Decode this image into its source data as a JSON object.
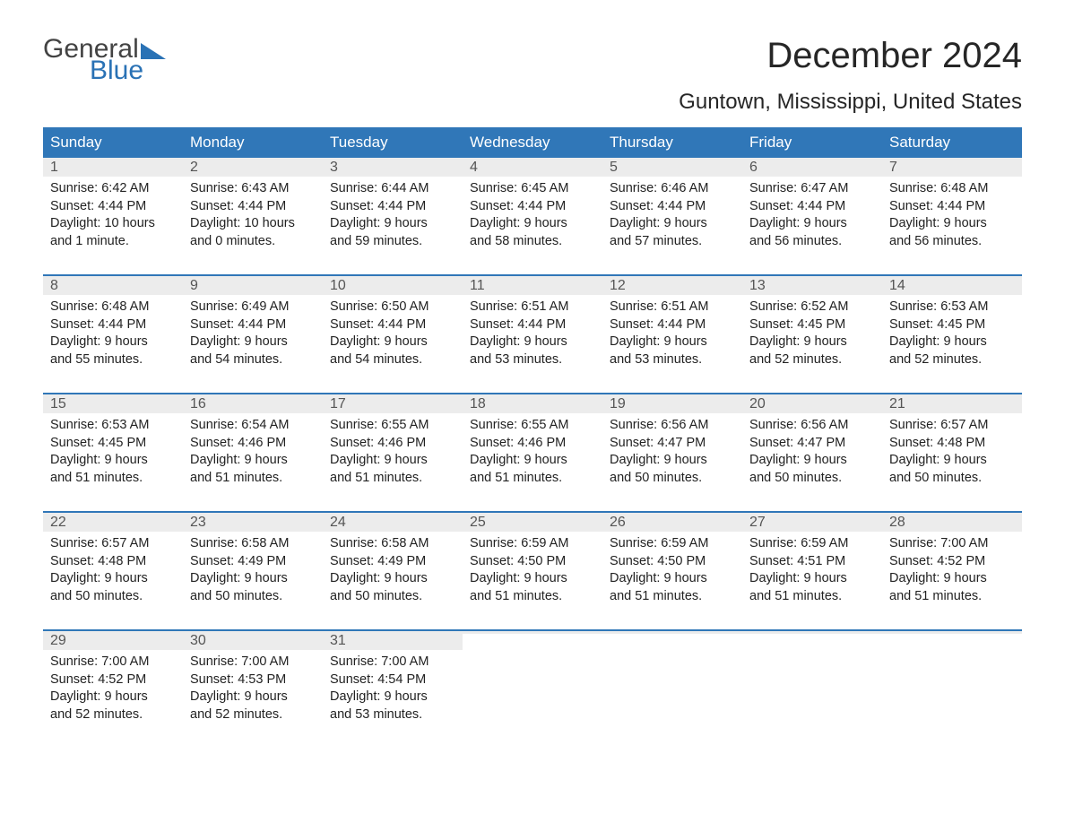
{
  "logo": {
    "line1": "General",
    "line2": "Blue"
  },
  "title": "December 2024",
  "location": "Guntown, Mississippi, United States",
  "colors": {
    "header_blue": "#3077b8",
    "band_gray": "#ececec",
    "logo_gray": "#434343",
    "logo_blue": "#2a72b5",
    "text": "#222222",
    "background": "#ffffff"
  },
  "fonts": {
    "title_pt": 40,
    "location_pt": 24,
    "weekday_pt": 17,
    "daynum_pt": 16,
    "body_pt": 14.5
  },
  "weekdays": [
    "Sunday",
    "Monday",
    "Tuesday",
    "Wednesday",
    "Thursday",
    "Friday",
    "Saturday"
  ],
  "weeks": [
    [
      {
        "n": "1",
        "sr": "Sunrise: 6:42 AM",
        "ss": "Sunset: 4:44 PM",
        "d1": "Daylight: 10 hours",
        "d2": "and 1 minute."
      },
      {
        "n": "2",
        "sr": "Sunrise: 6:43 AM",
        "ss": "Sunset: 4:44 PM",
        "d1": "Daylight: 10 hours",
        "d2": "and 0 minutes."
      },
      {
        "n": "3",
        "sr": "Sunrise: 6:44 AM",
        "ss": "Sunset: 4:44 PM",
        "d1": "Daylight: 9 hours",
        "d2": "and 59 minutes."
      },
      {
        "n": "4",
        "sr": "Sunrise: 6:45 AM",
        "ss": "Sunset: 4:44 PM",
        "d1": "Daylight: 9 hours",
        "d2": "and 58 minutes."
      },
      {
        "n": "5",
        "sr": "Sunrise: 6:46 AM",
        "ss": "Sunset: 4:44 PM",
        "d1": "Daylight: 9 hours",
        "d2": "and 57 minutes."
      },
      {
        "n": "6",
        "sr": "Sunrise: 6:47 AM",
        "ss": "Sunset: 4:44 PM",
        "d1": "Daylight: 9 hours",
        "d2": "and 56 minutes."
      },
      {
        "n": "7",
        "sr": "Sunrise: 6:48 AM",
        "ss": "Sunset: 4:44 PM",
        "d1": "Daylight: 9 hours",
        "d2": "and 56 minutes."
      }
    ],
    [
      {
        "n": "8",
        "sr": "Sunrise: 6:48 AM",
        "ss": "Sunset: 4:44 PM",
        "d1": "Daylight: 9 hours",
        "d2": "and 55 minutes."
      },
      {
        "n": "9",
        "sr": "Sunrise: 6:49 AM",
        "ss": "Sunset: 4:44 PM",
        "d1": "Daylight: 9 hours",
        "d2": "and 54 minutes."
      },
      {
        "n": "10",
        "sr": "Sunrise: 6:50 AM",
        "ss": "Sunset: 4:44 PM",
        "d1": "Daylight: 9 hours",
        "d2": "and 54 minutes."
      },
      {
        "n": "11",
        "sr": "Sunrise: 6:51 AM",
        "ss": "Sunset: 4:44 PM",
        "d1": "Daylight: 9 hours",
        "d2": "and 53 minutes."
      },
      {
        "n": "12",
        "sr": "Sunrise: 6:51 AM",
        "ss": "Sunset: 4:44 PM",
        "d1": "Daylight: 9 hours",
        "d2": "and 53 minutes."
      },
      {
        "n": "13",
        "sr": "Sunrise: 6:52 AM",
        "ss": "Sunset: 4:45 PM",
        "d1": "Daylight: 9 hours",
        "d2": "and 52 minutes."
      },
      {
        "n": "14",
        "sr": "Sunrise: 6:53 AM",
        "ss": "Sunset: 4:45 PM",
        "d1": "Daylight: 9 hours",
        "d2": "and 52 minutes."
      }
    ],
    [
      {
        "n": "15",
        "sr": "Sunrise: 6:53 AM",
        "ss": "Sunset: 4:45 PM",
        "d1": "Daylight: 9 hours",
        "d2": "and 51 minutes."
      },
      {
        "n": "16",
        "sr": "Sunrise: 6:54 AM",
        "ss": "Sunset: 4:46 PM",
        "d1": "Daylight: 9 hours",
        "d2": "and 51 minutes."
      },
      {
        "n": "17",
        "sr": "Sunrise: 6:55 AM",
        "ss": "Sunset: 4:46 PM",
        "d1": "Daylight: 9 hours",
        "d2": "and 51 minutes."
      },
      {
        "n": "18",
        "sr": "Sunrise: 6:55 AM",
        "ss": "Sunset: 4:46 PM",
        "d1": "Daylight: 9 hours",
        "d2": "and 51 minutes."
      },
      {
        "n": "19",
        "sr": "Sunrise: 6:56 AM",
        "ss": "Sunset: 4:47 PM",
        "d1": "Daylight: 9 hours",
        "d2": "and 50 minutes."
      },
      {
        "n": "20",
        "sr": "Sunrise: 6:56 AM",
        "ss": "Sunset: 4:47 PM",
        "d1": "Daylight: 9 hours",
        "d2": "and 50 minutes."
      },
      {
        "n": "21",
        "sr": "Sunrise: 6:57 AM",
        "ss": "Sunset: 4:48 PM",
        "d1": "Daylight: 9 hours",
        "d2": "and 50 minutes."
      }
    ],
    [
      {
        "n": "22",
        "sr": "Sunrise: 6:57 AM",
        "ss": "Sunset: 4:48 PM",
        "d1": "Daylight: 9 hours",
        "d2": "and 50 minutes."
      },
      {
        "n": "23",
        "sr": "Sunrise: 6:58 AM",
        "ss": "Sunset: 4:49 PM",
        "d1": "Daylight: 9 hours",
        "d2": "and 50 minutes."
      },
      {
        "n": "24",
        "sr": "Sunrise: 6:58 AM",
        "ss": "Sunset: 4:49 PM",
        "d1": "Daylight: 9 hours",
        "d2": "and 50 minutes."
      },
      {
        "n": "25",
        "sr": "Sunrise: 6:59 AM",
        "ss": "Sunset: 4:50 PM",
        "d1": "Daylight: 9 hours",
        "d2": "and 51 minutes."
      },
      {
        "n": "26",
        "sr": "Sunrise: 6:59 AM",
        "ss": "Sunset: 4:50 PM",
        "d1": "Daylight: 9 hours",
        "d2": "and 51 minutes."
      },
      {
        "n": "27",
        "sr": "Sunrise: 6:59 AM",
        "ss": "Sunset: 4:51 PM",
        "d1": "Daylight: 9 hours",
        "d2": "and 51 minutes."
      },
      {
        "n": "28",
        "sr": "Sunrise: 7:00 AM",
        "ss": "Sunset: 4:52 PM",
        "d1": "Daylight: 9 hours",
        "d2": "and 51 minutes."
      }
    ],
    [
      {
        "n": "29",
        "sr": "Sunrise: 7:00 AM",
        "ss": "Sunset: 4:52 PM",
        "d1": "Daylight: 9 hours",
        "d2": "and 52 minutes."
      },
      {
        "n": "30",
        "sr": "Sunrise: 7:00 AM",
        "ss": "Sunset: 4:53 PM",
        "d1": "Daylight: 9 hours",
        "d2": "and 52 minutes."
      },
      {
        "n": "31",
        "sr": "Sunrise: 7:00 AM",
        "ss": "Sunset: 4:54 PM",
        "d1": "Daylight: 9 hours",
        "d2": "and 53 minutes."
      },
      {
        "empty": true
      },
      {
        "empty": true
      },
      {
        "empty": true
      },
      {
        "empty": true
      }
    ]
  ]
}
